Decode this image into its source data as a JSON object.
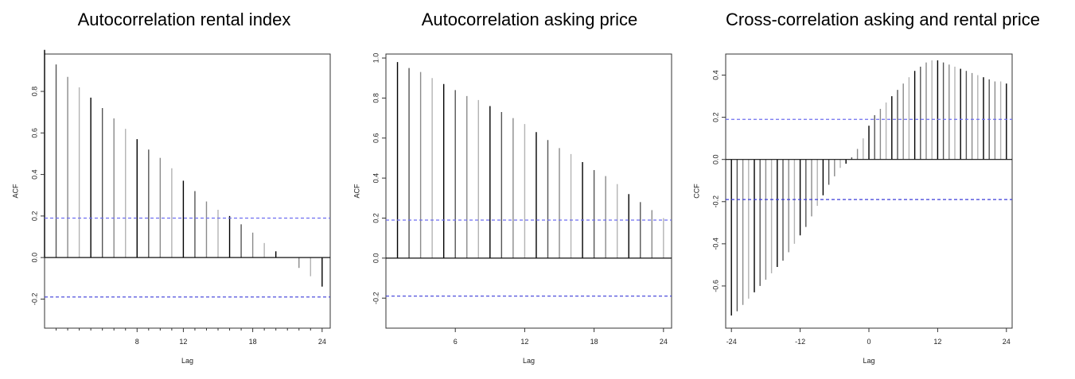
{
  "chart_data": [
    {
      "type": "bar",
      "title": "Autocorrelation rental index",
      "xlabel": "Lag",
      "ylabel": "ACF",
      "xlim": [
        0,
        24.7
      ],
      "ylim": [
        -0.34,
        0.98
      ],
      "xticks": [
        8,
        12,
        18,
        24
      ],
      "xminor": [
        1,
        2,
        3,
        4,
        5,
        6,
        7,
        9,
        10,
        11,
        13,
        14,
        15,
        16,
        17,
        19,
        20,
        21,
        22,
        23
      ],
      "yticks": [
        -0.2,
        0.0,
        0.2,
        0.4,
        0.6,
        0.8
      ],
      "ytick_labels": [
        "-0.2",
        "0.0",
        "0.2",
        "0.4",
        "0.6",
        "0.8"
      ],
      "zero_line": 0,
      "confidence_band": [
        0.19,
        -0.19
      ],
      "x": [
        0,
        1,
        2,
        3,
        4,
        5,
        6,
        7,
        8,
        9,
        10,
        11,
        12,
        13,
        14,
        15,
        16,
        17,
        18,
        19,
        20,
        21,
        22,
        23,
        24
      ],
      "values": [
        1.0,
        0.93,
        0.87,
        0.82,
        0.77,
        0.72,
        0.67,
        0.62,
        0.57,
        0.52,
        0.48,
        0.43,
        0.37,
        0.32,
        0.27,
        0.23,
        0.2,
        0.16,
        0.12,
        0.07,
        0.03,
        0.0,
        -0.05,
        -0.09,
        -0.14
      ]
    },
    {
      "type": "bar",
      "title": "Autocorrelation asking price",
      "xlabel": "Lag",
      "ylabel": "ACF",
      "xlim": [
        0,
        24.7
      ],
      "ylim": [
        -0.35,
        1.02
      ],
      "xticks": [
        6,
        12,
        18,
        24
      ],
      "xminor": [],
      "yticks": [
        -0.2,
        0.0,
        0.2,
        0.4,
        0.6,
        0.8,
        1.0
      ],
      "ytick_labels": [
        "-0.2",
        "0.0",
        "0.2",
        "0.4",
        "0.6",
        "0.8",
        "1.0"
      ],
      "zero_line": 0,
      "confidence_band": [
        0.19,
        -0.19
      ],
      "x": [
        1,
        2,
        3,
        4,
        5,
        6,
        7,
        8,
        9,
        10,
        11,
        12,
        13,
        14,
        15,
        16,
        17,
        18,
        19,
        20,
        21,
        22,
        23,
        24
      ],
      "values": [
        0.98,
        0.95,
        0.93,
        0.9,
        0.87,
        0.84,
        0.81,
        0.79,
        0.76,
        0.73,
        0.7,
        0.67,
        0.63,
        0.59,
        0.55,
        0.52,
        0.48,
        0.44,
        0.41,
        0.37,
        0.32,
        0.28,
        0.24,
        0.2
      ]
    },
    {
      "type": "bar",
      "title": "Cross-correlation asking and rental price",
      "xlabel": "Lag",
      "ylabel": "CCF",
      "xlim": [
        -25,
        25
      ],
      "ylim": [
        -0.8,
        0.5
      ],
      "xticks": [
        -24,
        -12,
        0,
        12,
        24
      ],
      "xminor": [],
      "yticks": [
        -0.6,
        -0.4,
        -0.2,
        0.0,
        0.2,
        0.4
      ],
      "ytick_labels": [
        "-0.6",
        "-0.4",
        "-0.2",
        "0.0",
        "0.2",
        "0.4"
      ],
      "zero_line": 0,
      "confidence_band": [
        0.19,
        -0.19
      ],
      "x": [
        -24,
        -23,
        -22,
        -21,
        -20,
        -19,
        -18,
        -17,
        -16,
        -15,
        -14,
        -13,
        -12,
        -11,
        -10,
        -9,
        -8,
        -7,
        -6,
        -5,
        -4,
        -3,
        -2,
        -1,
        0,
        1,
        2,
        3,
        4,
        5,
        6,
        7,
        8,
        9,
        10,
        11,
        12,
        13,
        14,
        15,
        16,
        17,
        18,
        19,
        20,
        21,
        22,
        23,
        24
      ],
      "values": [
        -0.74,
        -0.72,
        -0.69,
        -0.66,
        -0.63,
        -0.6,
        -0.57,
        -0.54,
        -0.51,
        -0.48,
        -0.44,
        -0.4,
        -0.36,
        -0.32,
        -0.27,
        -0.22,
        -0.17,
        -0.12,
        -0.08,
        -0.04,
        -0.02,
        0.01,
        0.05,
        0.1,
        0.16,
        0.21,
        0.24,
        0.27,
        0.3,
        0.33,
        0.36,
        0.39,
        0.42,
        0.44,
        0.46,
        0.47,
        0.47,
        0.46,
        0.45,
        0.44,
        0.43,
        0.42,
        0.41,
        0.4,
        0.39,
        0.38,
        0.37,
        0.37,
        0.36
      ]
    }
  ]
}
